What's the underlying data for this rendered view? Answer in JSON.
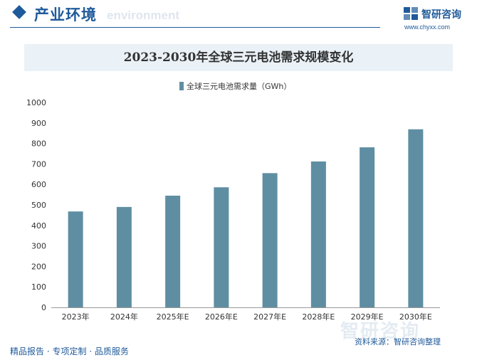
{
  "header": {
    "title": "产业环境",
    "subtitle": "environment",
    "logo_name": "智研咨询",
    "logo_url": "www.chyxx.com"
  },
  "footer": {
    "slogan": "精品报告 · 专项定制 · 品质服务",
    "source": "资料来源：智研咨询整理",
    "watermark": "智研咨询"
  },
  "colors": {
    "bar": "#5f8ea2",
    "brand": "#1f5a9a",
    "title_band": "#eaf1f7"
  },
  "chart_data": {
    "type": "bar",
    "title": "2023-2030年全球三元电池需求规模变化",
    "categories": [
      "2023年",
      "2024年",
      "2025年E",
      "2026年E",
      "2027年E",
      "2028年E",
      "2029年E",
      "2030年E"
    ],
    "series": [
      {
        "name": "全球三元电池需求量（GWh）",
        "values": [
          468,
          490,
          545,
          586,
          655,
          712,
          781,
          869
        ]
      }
    ],
    "yticks": [
      0,
      100,
      200,
      300,
      400,
      500,
      600,
      700,
      800,
      900,
      1000
    ],
    "ylim": [
      0,
      1000
    ],
    "grid": false,
    "legend": "top-center"
  }
}
